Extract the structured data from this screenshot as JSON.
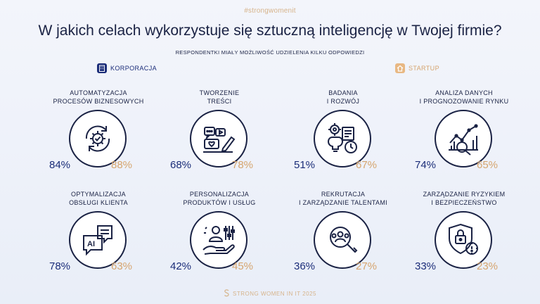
{
  "hashtag": "#strongwomenit",
  "footer": "STRONG WOMEN IN IT 2025",
  "chart_data": {
    "type": "table",
    "title": "W jakich celach wykorzystuje się sztuczną inteligencję w Twojej firmie?",
    "subtitle": "RESPONDENTKI MIAŁY MOŻLIWOŚĆ UDZIELENIA KILKU ODPOWIEDZI",
    "legend": [
      {
        "name": "KORPORACJA",
        "color": "#1a2c78"
      },
      {
        "name": "STARTUP",
        "color": "#d6a56e"
      }
    ],
    "categories": [
      {
        "label": "AUTOMATYZACJA\nPROCESÓW BIZNESOWYCH",
        "icon": "gear-cycle-icon",
        "korporacja": "84%",
        "startup": "88%"
      },
      {
        "label": "TWORZENIE\nTREŚCI",
        "icon": "content-creation-icon",
        "korporacja": "68%",
        "startup": "78%"
      },
      {
        "label": "BADANIA\nI ROZWÓJ",
        "icon": "research-lightbulb-icon",
        "korporacja": "51%",
        "startup": "67%"
      },
      {
        "label": "ANALIZA DANYCH\nI PROGNOZOWANIE RYNKU",
        "icon": "chart-magnifier-icon",
        "korporacja": "74%",
        "startup": "65%"
      },
      {
        "label": "OPTYMALIZACJA\nOBSŁUGI KLIENTA",
        "icon": "ai-chat-icon",
        "korporacja": "78%",
        "startup": "63%"
      },
      {
        "label": "PERSONALIZACJA\nPRODUKTÓW I USŁUG",
        "icon": "person-sliders-icon",
        "korporacja": "42%",
        "startup": "45%"
      },
      {
        "label": "REKRUTACJA\nI ZARZĄDZANIE TALENTAMI",
        "icon": "people-search-icon",
        "korporacja": "36%",
        "startup": "27%"
      },
      {
        "label": "ZARZĄDZANIE RYZYKIEM\nI BEZPIECZEŃSTWO",
        "icon": "shield-lock-icon",
        "korporacja": "33%",
        "startup": "23%"
      }
    ]
  }
}
